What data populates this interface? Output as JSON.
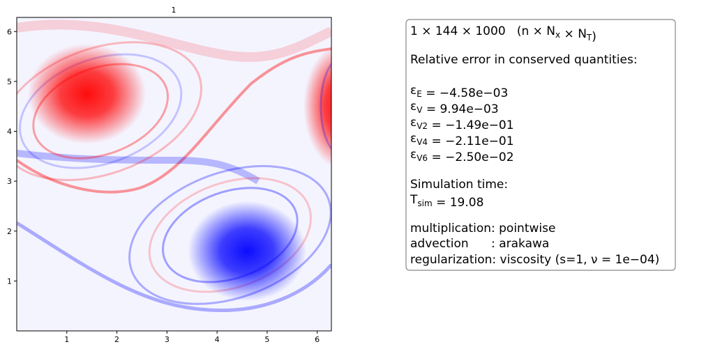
{
  "chart_data": {
    "type": "heatmap",
    "title": "1",
    "xlim": [
      0,
      6.283
    ],
    "ylim": [
      0,
      6.283
    ],
    "xticks": [
      1,
      2,
      3,
      4,
      5,
      6
    ],
    "yticks": [
      1,
      2,
      3,
      4,
      5,
      6
    ],
    "colormap": {
      "positive": "#ff0000",
      "negative": "#0000ff"
    },
    "annotation": {
      "lines": [
        [
          "1 × 144 × 1000   (n × N",
          {
            "sub": "x"
          },
          " × N",
          {
            "sub": "T"
          },
          ")"
        ],
        [
          "Relative error in conserved quantities:"
        ],
        [
          "ε",
          {
            "sub": "E"
          },
          " = −4.58e−03"
        ],
        [
          "ε",
          {
            "sub": "V"
          },
          " = 9.94e−03"
        ],
        [
          "ε",
          {
            "sub": "V2"
          },
          " = −1.49e−01"
        ],
        [
          "ε",
          {
            "sub": "V4"
          },
          " = −2.11e−01"
        ],
        [
          "ε",
          {
            "sub": "V6"
          },
          " = −2.50e−02"
        ],
        [
          "Simulation time:"
        ],
        [
          "T",
          {
            "sub": "sim"
          },
          " = 19.08"
        ],
        [
          "multiplication: pointwise"
        ],
        [
          "advection      : arakawa"
        ],
        [
          "regularization: viscosity (s=1, ν = 1e−04)"
        ]
      ]
    }
  }
}
